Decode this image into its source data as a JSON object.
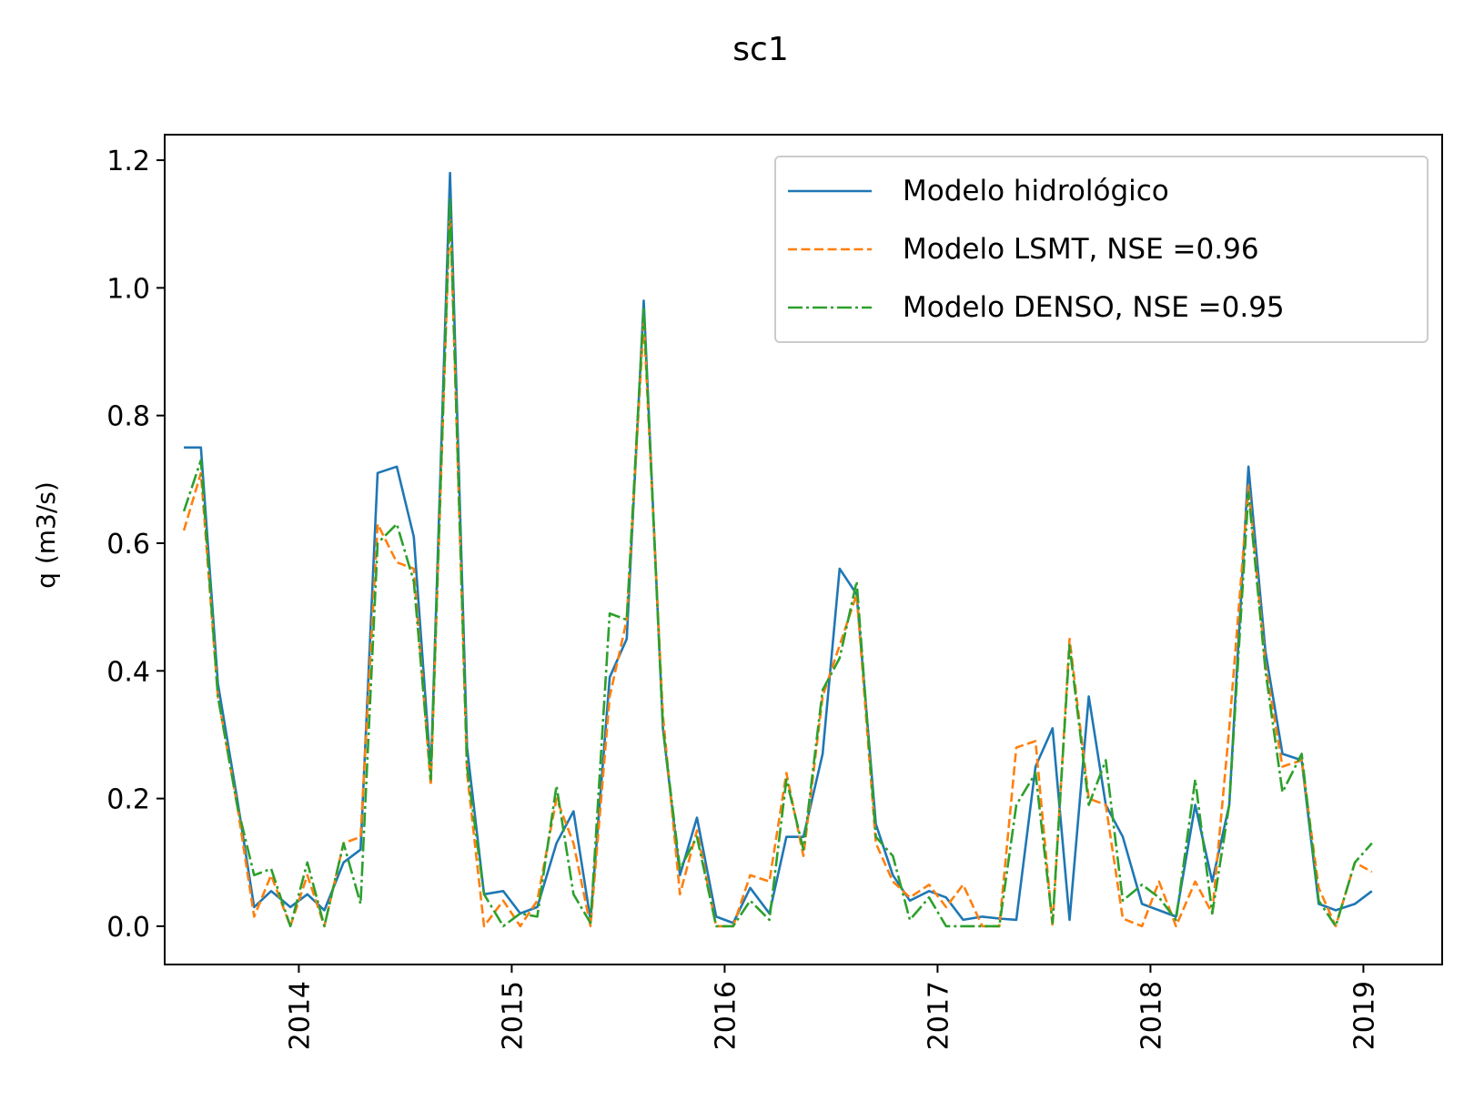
{
  "chart_data": {
    "type": "line",
    "title": "sc1",
    "xlabel": "",
    "ylabel": "q (m3/s)",
    "xlim": [
      2013.37,
      2019.37
    ],
    "ylim": [
      -0.06,
      1.24
    ],
    "xticks": [
      "2014",
      "2015",
      "2016",
      "2017",
      "2018",
      "2019"
    ],
    "yticks": [
      "0.0",
      "0.2",
      "0.4",
      "0.6",
      "0.8",
      "1.0",
      "1.2"
    ],
    "grid": false,
    "legend_position": "top-right",
    "x": [
      2013.46,
      2013.54,
      2013.62,
      2013.71,
      2013.79,
      2013.87,
      2013.96,
      2014.04,
      2014.12,
      2014.21,
      2014.29,
      2014.37,
      2014.46,
      2014.54,
      2014.62,
      2014.71,
      2014.79,
      2014.87,
      2014.96,
      2015.04,
      2015.12,
      2015.21,
      2015.29,
      2015.37,
      2015.46,
      2015.54,
      2015.62,
      2015.71,
      2015.79,
      2015.87,
      2015.96,
      2016.04,
      2016.12,
      2016.21,
      2016.29,
      2016.37,
      2016.46,
      2016.54,
      2016.62,
      2016.71,
      2016.79,
      2016.87,
      2016.96,
      2017.04,
      2017.12,
      2017.21,
      2017.29,
      2017.37,
      2017.46,
      2017.54,
      2017.62,
      2017.71,
      2017.79,
      2017.87,
      2017.96,
      2018.04,
      2018.12,
      2018.21,
      2018.29,
      2018.37,
      2018.46,
      2018.54,
      2018.62,
      2018.71,
      2018.79,
      2018.87,
      2018.96,
      2019.04
    ],
    "series": [
      {
        "name": "Modelo hidrológico",
        "color": "#1f77b4",
        "style": "solid",
        "values": [
          0.75,
          0.75,
          0.38,
          0.2,
          0.03,
          0.055,
          0.03,
          0.05,
          0.025,
          0.1,
          0.12,
          0.71,
          0.72,
          0.61,
          0.24,
          1.18,
          0.28,
          0.05,
          0.055,
          0.02,
          0.03,
          0.13,
          0.18,
          0.01,
          0.39,
          0.45,
          0.98,
          0.31,
          0.08,
          0.17,
          0.015,
          0.005,
          0.06,
          0.02,
          0.14,
          0.14,
          0.27,
          0.56,
          0.52,
          0.16,
          0.08,
          0.04,
          0.055,
          0.045,
          0.01,
          0.015,
          0.012,
          0.01,
          0.25,
          0.31,
          0.01,
          0.36,
          0.19,
          0.14,
          0.035,
          0.025,
          0.015,
          0.19,
          0.07,
          0.19,
          0.72,
          0.43,
          0.27,
          0.26,
          0.035,
          0.025,
          0.035,
          0.055
        ]
      },
      {
        "name": "Modelo LSMT, NSE =0.96",
        "color": "#ff7f0e",
        "style": "dashed",
        "values": [
          0.62,
          0.71,
          0.36,
          0.19,
          0.015,
          0.08,
          0.0,
          0.08,
          0.0,
          0.13,
          0.14,
          0.63,
          0.57,
          0.56,
          0.22,
          1.13,
          0.24,
          0.0,
          0.04,
          0.0,
          0.04,
          0.2,
          0.13,
          0.0,
          0.36,
          0.48,
          0.95,
          0.33,
          0.05,
          0.15,
          0.0,
          0.0,
          0.08,
          0.07,
          0.24,
          0.11,
          0.36,
          0.44,
          0.52,
          0.13,
          0.07,
          0.045,
          0.065,
          0.03,
          0.065,
          0.0,
          0.0,
          0.28,
          0.29,
          0.0,
          0.45,
          0.2,
          0.19,
          0.012,
          0.0,
          0.07,
          0.0,
          0.07,
          0.02,
          0.31,
          0.69,
          0.41,
          0.25,
          0.26,
          0.06,
          0.0,
          0.1,
          0.085
        ]
      },
      {
        "name": "Modelo DENSO, NSE =0.95",
        "color": "#2ca02c",
        "style": "dashdot",
        "values": [
          0.65,
          0.73,
          0.36,
          0.19,
          0.08,
          0.09,
          0.0,
          0.1,
          0.0,
          0.13,
          0.035,
          0.6,
          0.63,
          0.54,
          0.23,
          1.14,
          0.25,
          0.05,
          0.0,
          0.02,
          0.015,
          0.22,
          0.05,
          0.005,
          0.49,
          0.48,
          0.97,
          0.31,
          0.09,
          0.14,
          0.0,
          0.0,
          0.04,
          0.01,
          0.23,
          0.12,
          0.37,
          0.42,
          0.54,
          0.14,
          0.11,
          0.01,
          0.045,
          0.0,
          0.0,
          0.0,
          0.0,
          0.19,
          0.24,
          0.005,
          0.44,
          0.19,
          0.26,
          0.04,
          0.065,
          0.045,
          0.01,
          0.23,
          0.02,
          0.19,
          0.68,
          0.4,
          0.21,
          0.27,
          0.04,
          0.0,
          0.1,
          0.13
        ]
      }
    ]
  }
}
